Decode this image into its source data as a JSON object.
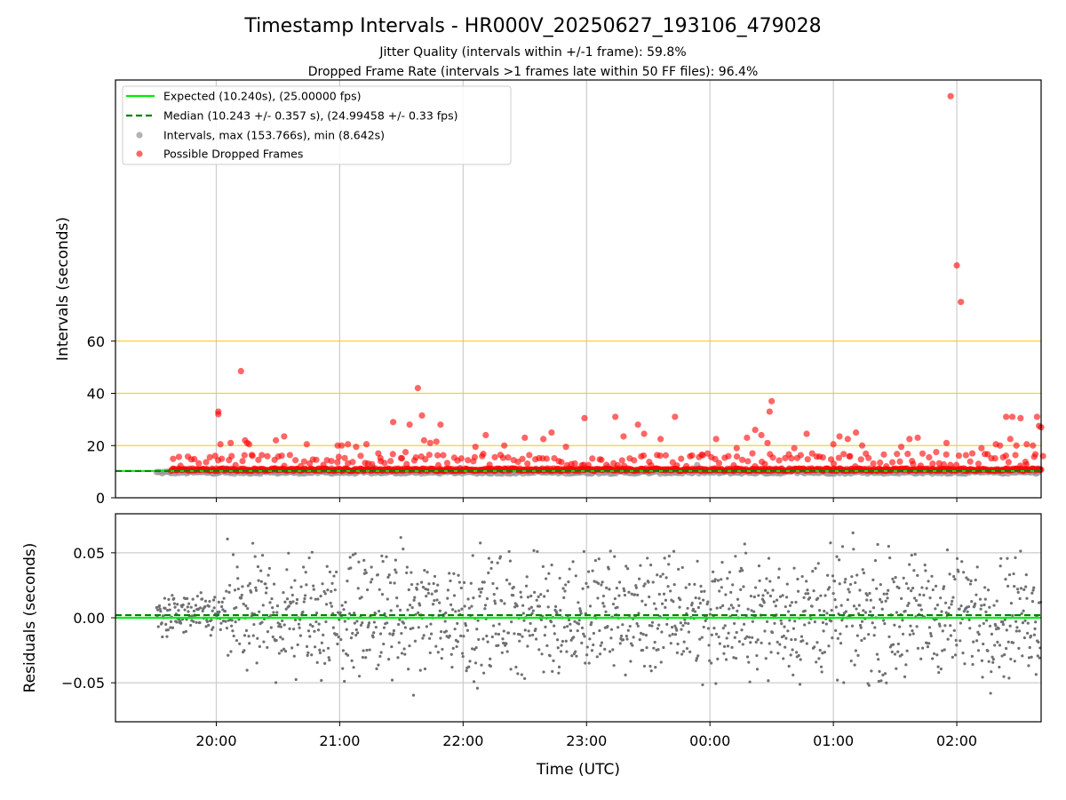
{
  "header": {
    "title": "Timestamp Intervals - HR000V_20250627_193106_479028",
    "subtitle1": "Jitter Quality (intervals within +/-1 frame): 59.8%",
    "subtitle2": "Dropped Frame Rate (intervals >1 frames late within 50 FF files): 96.4%"
  },
  "colors": {
    "expected": "#00ee00",
    "median": "#008000",
    "intervals": "#999999",
    "dropped": "#ff0000",
    "threshold": "#ffc800",
    "grid": "#cccccc",
    "residual": "#707070"
  },
  "chart_data": [
    {
      "type": "scatter",
      "id": "intervals",
      "ylabel": "Intervals (seconds)",
      "xlabel": "",
      "x_unit": "Time (UTC)",
      "xlim": [
        "19:11",
        "02:41"
      ],
      "ylim": [
        0,
        160
      ],
      "yticks": [
        "0",
        "20",
        "40",
        "60"
      ],
      "xticks": [
        "20:00",
        "21:00",
        "22:00",
        "23:00",
        "00:00",
        "01:00",
        "02:00"
      ],
      "threshold_lines": [
        20,
        40,
        60
      ],
      "grid": "vertical",
      "legend_position": "top-left",
      "legend": [
        {
          "kind": "line",
          "label": "Expected (10.240s), (25.00000 fps)"
        },
        {
          "kind": "dash",
          "label": "Median (10.243 +/- 0.357 s), (24.99458 +/- 0.33 fps)"
        },
        {
          "kind": "gray-dot",
          "label": "Intervals, max (153.766s), min (8.642s)"
        },
        {
          "kind": "red-dot",
          "label": "Possible Dropped Frames"
        }
      ],
      "expected_interval": 10.24,
      "median_interval": 10.243,
      "interval_range": {
        "start": "19:31",
        "end": "02:41",
        "value_min": 8.6,
        "value_max": 13.0
      },
      "dropped_range": {
        "start": "19:38",
        "end": "02:41",
        "value_min": 10.3,
        "value_max": 12.0
      },
      "dropped_outliers": [
        [
          "20:01",
          33
        ],
        [
          "20:01",
          32
        ],
        [
          "20:02",
          20.5
        ],
        [
          "20:07",
          21
        ],
        [
          "20:12",
          48.5
        ],
        [
          "20:14",
          22
        ],
        [
          "20:15",
          21
        ],
        [
          "20:16",
          20.5
        ],
        [
          "20:29",
          22
        ],
        [
          "20:33",
          23.5
        ],
        [
          "20:44",
          20.5
        ],
        [
          "20:59",
          20
        ],
        [
          "21:01",
          20
        ],
        [
          "21:04",
          20.5
        ],
        [
          "21:08",
          19.5
        ],
        [
          "21:13",
          20.5
        ],
        [
          "21:20",
          14
        ],
        [
          "21:26",
          29
        ],
        [
          "21:32",
          17.5
        ],
        [
          "21:34",
          28
        ],
        [
          "21:38",
          42
        ],
        [
          "21:40",
          31.5
        ],
        [
          "21:41",
          22
        ],
        [
          "21:44",
          21
        ],
        [
          "21:47",
          21.5
        ],
        [
          "21:49",
          28
        ],
        [
          "22:06",
          19.5
        ],
        [
          "22:11",
          24
        ],
        [
          "22:20",
          20
        ],
        [
          "22:30",
          23
        ],
        [
          "22:39",
          22.5
        ],
        [
          "22:43",
          25
        ],
        [
          "22:50",
          19.5
        ],
        [
          "22:59",
          30.5
        ],
        [
          "23:14",
          31
        ],
        [
          "23:18",
          23.5
        ],
        [
          "23:25",
          28
        ],
        [
          "23:28",
          24.5
        ],
        [
          "23:36",
          22.5
        ],
        [
          "23:43",
          31
        ],
        [
          "23:56",
          16.5
        ],
        [
          "00:03",
          22.5
        ],
        [
          "00:13",
          19
        ],
        [
          "00:18",
          23
        ],
        [
          "00:22",
          26
        ],
        [
          "00:25",
          24
        ],
        [
          "00:28",
          21
        ],
        [
          "00:29",
          33
        ],
        [
          "00:30",
          37
        ],
        [
          "00:41",
          19
        ],
        [
          "00:47",
          24.5
        ],
        [
          "01:00",
          20.5
        ],
        [
          "01:03",
          23.5
        ],
        [
          "01:07",
          22.5
        ],
        [
          "01:11",
          25
        ],
        [
          "01:14",
          20
        ],
        [
          "01:33",
          19.5
        ],
        [
          "01:37",
          22.5
        ],
        [
          "01:41",
          23
        ],
        [
          "01:50",
          17.5
        ],
        [
          "01:55",
          21
        ],
        [
          "01:57",
          153.8
        ],
        [
          "02:00",
          89
        ],
        [
          "02:02",
          75
        ],
        [
          "02:12",
          19
        ],
        [
          "02:19",
          20.5
        ],
        [
          "02:21",
          20
        ],
        [
          "02:24",
          31
        ],
        [
          "02:26",
          22.5
        ],
        [
          "02:27",
          31
        ],
        [
          "02:29",
          20
        ],
        [
          "02:31",
          30.5
        ],
        [
          "02:34",
          20.5
        ],
        [
          "02:37",
          20
        ],
        [
          "02:39",
          31
        ],
        [
          "02:40",
          27.5
        ],
        [
          "02:41",
          27
        ]
      ]
    },
    {
      "type": "scatter",
      "id": "residuals",
      "ylabel": "Residuals (seconds)",
      "xlabel": "Time (UTC)",
      "xlim": [
        "19:11",
        "02:41"
      ],
      "ylim": [
        -0.08,
        0.08
      ],
      "yticks": [
        "0.05",
        "0.00",
        "−0.05"
      ],
      "xticks": [
        "20:00",
        "21:00",
        "22:00",
        "23:00",
        "00:00",
        "01:00",
        "02:00"
      ],
      "grid": "both",
      "expected_residual": 0.0,
      "median_residual": 0.002,
      "residual_spread": 0.055,
      "points_range": {
        "start": "19:31",
        "end": "02:41"
      }
    }
  ]
}
